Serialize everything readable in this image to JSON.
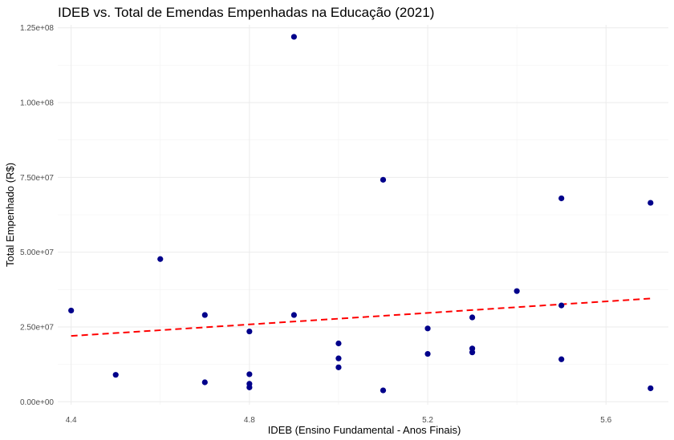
{
  "chart_data": {
    "type": "scatter",
    "title": "IDEB vs. Total de Emendas Empenhadas na Educação (2021)",
    "xlabel": "IDEB (Ensino Fundamental - Anos Finais)",
    "ylabel": "Total Empenhado (R$)",
    "xlim": [
      4.37,
      5.74
    ],
    "ylim": [
      -1000000,
      126000000
    ],
    "x_ticks": [
      4.4,
      4.8,
      5.2,
      5.6
    ],
    "x_tick_labels": [
      "4.4",
      "4.8",
      "5.2",
      "5.6"
    ],
    "y_ticks": [
      0,
      25000000,
      50000000,
      75000000,
      100000000,
      125000000
    ],
    "y_tick_labels": [
      "0.00e+00",
      "2.50e+07",
      "5.00e+07",
      "7.50e+07",
      "1.00e+08",
      "1.25e+08"
    ],
    "grid": true,
    "point_color": "#00008b",
    "trend_color": "#ff0000",
    "points": [
      {
        "x": 4.4,
        "y": 30500000
      },
      {
        "x": 4.5,
        "y": 9000000
      },
      {
        "x": 4.6,
        "y": 47700000
      },
      {
        "x": 4.7,
        "y": 29000000
      },
      {
        "x": 4.7,
        "y": 6500000
      },
      {
        "x": 4.8,
        "y": 23500000
      },
      {
        "x": 4.8,
        "y": 9200000
      },
      {
        "x": 4.8,
        "y": 6000000
      },
      {
        "x": 4.8,
        "y": 4800000
      },
      {
        "x": 4.9,
        "y": 122000000
      },
      {
        "x": 4.9,
        "y": 29000000
      },
      {
        "x": 5.0,
        "y": 19500000
      },
      {
        "x": 5.0,
        "y": 14500000
      },
      {
        "x": 5.0,
        "y": 11500000
      },
      {
        "x": 5.1,
        "y": 74200000
      },
      {
        "x": 5.1,
        "y": 3800000
      },
      {
        "x": 5.2,
        "y": 24500000
      },
      {
        "x": 5.2,
        "y": 16000000
      },
      {
        "x": 5.3,
        "y": 28200000
      },
      {
        "x": 5.3,
        "y": 17800000
      },
      {
        "x": 5.3,
        "y": 16500000
      },
      {
        "x": 5.4,
        "y": 37000000
      },
      {
        "x": 5.5,
        "y": 68000000
      },
      {
        "x": 5.5,
        "y": 32200000
      },
      {
        "x": 5.5,
        "y": 14200000
      },
      {
        "x": 5.7,
        "y": 66500000
      },
      {
        "x": 5.7,
        "y": 4500000
      }
    ],
    "trend_line": {
      "x": [
        4.4,
        5.7
      ],
      "y": [
        22000000,
        34500000
      ],
      "style": "dashed"
    }
  }
}
